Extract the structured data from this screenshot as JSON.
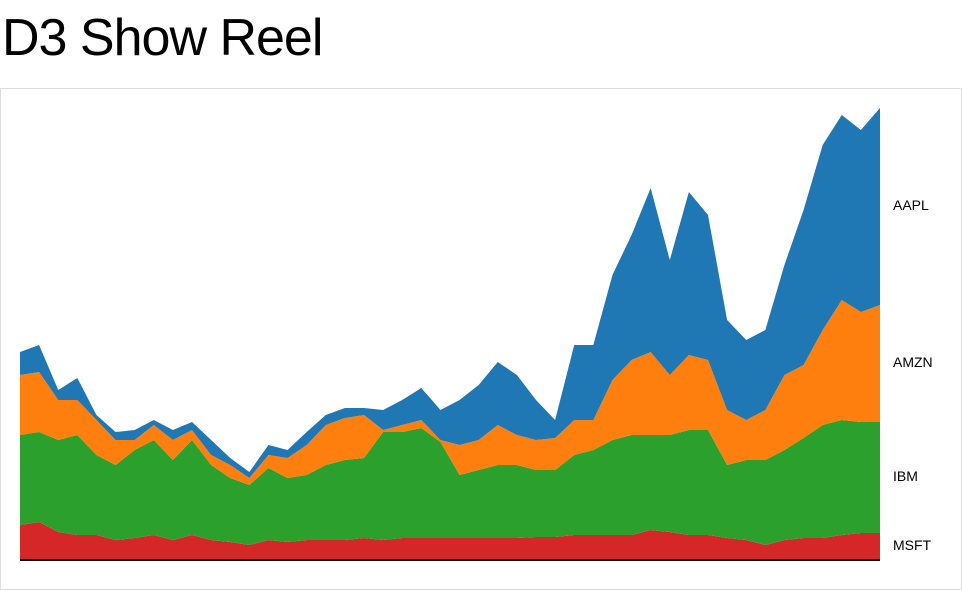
{
  "chart_data": {
    "type": "stacked-area",
    "title": "D3 Show Reel",
    "series": [
      {
        "name": "MSFT",
        "color": "#d62728",
        "values": [
          35,
          38,
          28,
          25,
          25,
          20,
          22,
          25,
          20,
          25,
          20,
          18,
          15,
          20,
          18,
          20,
          20,
          20,
          22,
          20,
          22,
          22,
          22,
          22,
          22,
          22,
          22,
          23,
          23,
          25,
          25,
          25,
          25,
          30,
          28,
          25,
          25,
          22,
          20,
          15,
          20,
          22,
          22,
          25,
          27,
          27
        ]
      },
      {
        "name": "IBM",
        "color": "#2ca02c",
        "values": [
          90,
          90,
          92,
          100,
          80,
          75,
          88,
          95,
          80,
          95,
          75,
          64,
          60,
          72,
          64,
          65,
          75,
          80,
          80,
          108,
          106,
          110,
          96,
          63,
          68,
          73,
          73,
          67,
          67,
          80,
          85,
          95,
          100,
          95,
          97,
          105,
          105,
          73,
          80,
          85,
          90,
          100,
          113,
          115,
          111,
          111
        ]
      },
      {
        "name": "AMZN",
        "color": "#ff7f0e",
        "values": [
          60,
          60,
          40,
          35,
          35,
          25,
          10,
          15,
          20,
          10,
          10,
          13,
          7,
          13,
          20,
          30,
          40,
          42,
          43,
          2,
          7,
          8,
          2,
          30,
          30,
          40,
          30,
          30,
          32,
          35,
          30,
          60,
          75,
          83,
          60,
          75,
          70,
          55,
          40,
          50,
          75,
          73,
          95,
          120,
          110,
          117
        ]
      },
      {
        "name": "AAPL",
        "color": "#1f77b4",
        "values": [
          23,
          27,
          10,
          22,
          5,
          8,
          10,
          5,
          10,
          8,
          15,
          7,
          6,
          10,
          8,
          13,
          10,
          10,
          7,
          20,
          25,
          32,
          30,
          45,
          55,
          63,
          60,
          40,
          18,
          75,
          75,
          105,
          125,
          164,
          115,
          163,
          145,
          90,
          80,
          80,
          110,
          155,
          185,
          185,
          182,
          197
        ]
      }
    ]
  }
}
